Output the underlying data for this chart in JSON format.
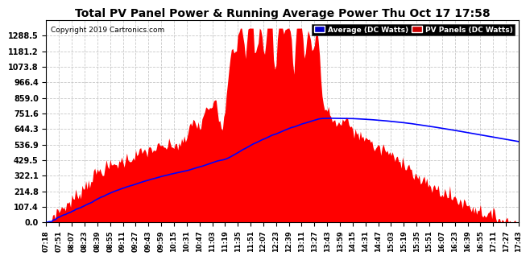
{
  "title": "Total PV Panel Power & Running Average Power Thu Oct 17 17:58",
  "copyright": "Copyright 2019 Cartronics.com",
  "legend_avg": "Average (DC Watts)",
  "legend_pv": "PV Panels (DC Watts)",
  "legend_avg_bg": "#0000cc",
  "legend_pv_bg": "#cc0000",
  "bg_color": "#ffffff",
  "plot_bg": "#ffffff",
  "grid_color": "#bbbbbb",
  "pv_color": "#ff0000",
  "avg_color": "#0000ff",
  "ymax": 1395.0,
  "ymin": 0.0,
  "yticks": [
    0.0,
    107.4,
    214.8,
    322.1,
    429.5,
    536.9,
    644.3,
    751.6,
    859.0,
    966.4,
    1073.8,
    1181.2,
    1288.5
  ],
  "x_labels": [
    "07:18",
    "07:51",
    "08:07",
    "08:23",
    "08:39",
    "08:55",
    "09:11",
    "09:27",
    "09:43",
    "09:59",
    "10:15",
    "10:31",
    "10:47",
    "11:03",
    "11:19",
    "11:35",
    "11:51",
    "12:07",
    "12:23",
    "12:39",
    "13:11",
    "13:27",
    "13:43",
    "13:59",
    "14:15",
    "14:31",
    "14:47",
    "15:03",
    "15:19",
    "15:35",
    "15:51",
    "16:07",
    "16:23",
    "16:39",
    "16:55",
    "17:11",
    "17:27",
    "17:43"
  ]
}
